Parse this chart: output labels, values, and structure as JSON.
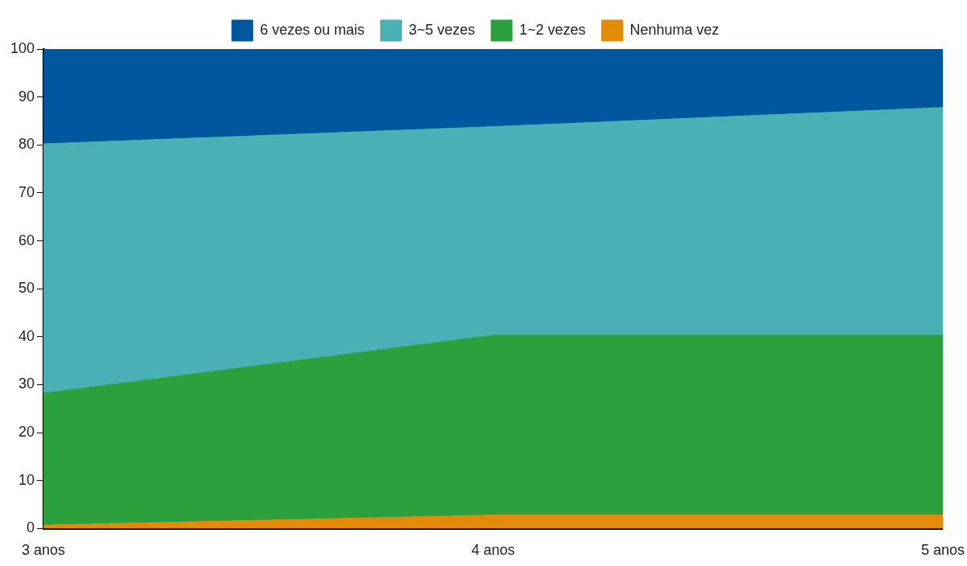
{
  "chart_data": {
    "type": "area",
    "stacked": true,
    "categories": [
      "3 anos",
      "4 anos",
      "5 anos"
    ],
    "series": [
      {
        "name": "Nenhuma vez",
        "color": "#e38a0b",
        "values": [
          0.7,
          2.8,
          2.8
        ]
      },
      {
        "name": "1~2 vezes",
        "color": "#2ba03d",
        "values": [
          27.5,
          37.5,
          37.5
        ]
      },
      {
        "name": "3~5 vezes",
        "color": "#49b1b5",
        "values": [
          52,
          43.5,
          47.5
        ]
      },
      {
        "name": "6 vezes ou mais",
        "color": "#00579e",
        "values": [
          19.8,
          16.2,
          12.2
        ]
      }
    ],
    "ylim": [
      0,
      100
    ],
    "yticks": [
      0,
      10,
      20,
      30,
      40,
      50,
      60,
      70,
      80,
      90,
      100
    ],
    "grid": false,
    "legend": "top"
  }
}
